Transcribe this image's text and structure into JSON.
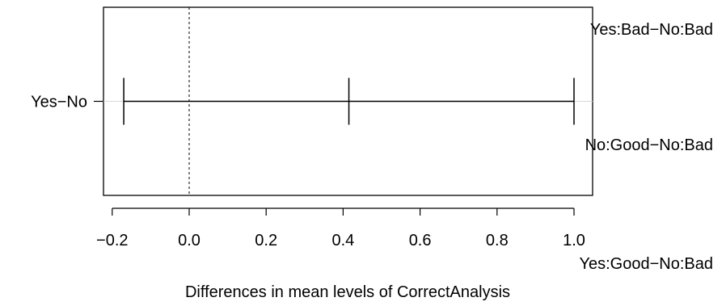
{
  "chart_data": {
    "type": "errorbar",
    "title": "",
    "xlabel": "Differences in mean levels of CorrectAnalysis",
    "ylabel": "",
    "xlim": [
      -0.22,
      1.05
    ],
    "xticks": [
      -0.2,
      0.0,
      0.2,
      0.4,
      0.6,
      0.8,
      1.0
    ],
    "xtick_labels": [
      "−0.2",
      "0.0",
      "0.2",
      "0.4",
      "0.6",
      "0.8",
      "1.0"
    ],
    "reference_line": 0,
    "intervals": [
      {
        "label": "Yes−No",
        "diff": 0.415,
        "lwr": -0.17,
        "upr": 1.0
      }
    ],
    "overlapping_labels": [
      "Yes:Bad−No:Bad",
      "No:Good−No:Bad",
      "Yes:Good−No:Bad"
    ],
    "grid": false,
    "legend": "none"
  }
}
